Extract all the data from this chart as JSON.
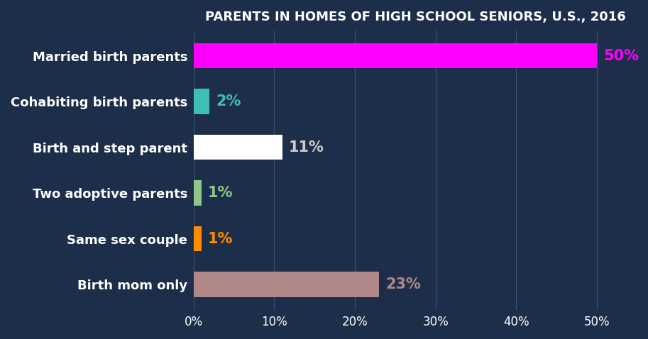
{
  "title": "PARENTS IN HOMES OF HIGH SCHOOL SENIORS, U.S., 2016",
  "categories": [
    "Married birth parents",
    "Cohabiting birth parents",
    "Birth and step parent",
    "Two adoptive parents",
    "Same sex couple",
    "Birth mom only"
  ],
  "values": [
    50,
    2,
    11,
    1,
    1,
    23
  ],
  "bar_colors": [
    "#FF00FF",
    "#3DBFB8",
    "#FFFFFF",
    "#8DC88A",
    "#FF8C00",
    "#B08888"
  ],
  "value_colors": [
    "#FF00FF",
    "#3DBFB8",
    "#CCCCCC",
    "#8DC88A",
    "#FF8C00",
    "#B08888"
  ],
  "title_color": "#FFFFFF",
  "background_color": "#1C2E4A",
  "tick_color": "#FFFFFF",
  "grid_color": "#3A5070",
  "xlim": [
    0,
    55
  ],
  "xticks": [
    0,
    10,
    20,
    30,
    40,
    50
  ],
  "xtick_labels": [
    "0%",
    "10%",
    "20%",
    "30%",
    "40%",
    "50%"
  ],
  "title_fontsize": 13,
  "label_fontsize": 13,
  "value_fontsize": 15,
  "tick_fontsize": 12,
  "bar_height": 0.55
}
